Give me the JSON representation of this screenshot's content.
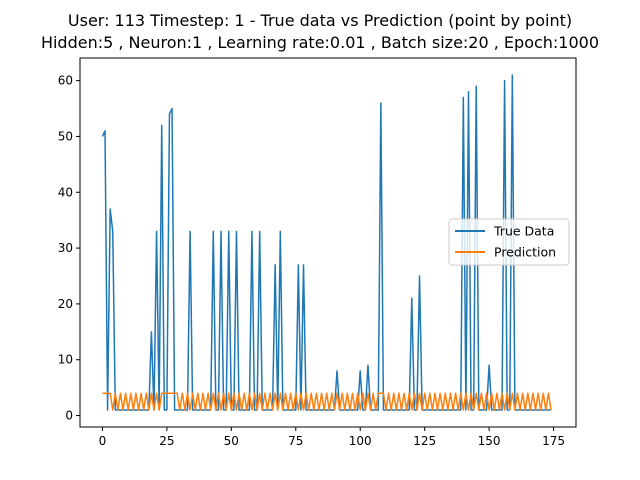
{
  "chart_data": {
    "type": "line",
    "title": "User: 113 Timestep: 1 - True data vs Prediction (point by point)",
    "subtitle": "Hidden:5 , Neuron:1 , Learning rate:0.01 , Batch size:20 , Epoch:1000",
    "xlabel": "",
    "ylabel": "",
    "xlim": [
      -8.7,
      183.7
    ],
    "ylim": [
      -2.05,
      64.05
    ],
    "xticks": [
      0,
      25,
      50,
      75,
      100,
      125,
      150,
      175
    ],
    "yticks": [
      0,
      10,
      20,
      30,
      40,
      50,
      60
    ],
    "grid": false,
    "legend_position": "center-right",
    "series": [
      {
        "name": "True Data",
        "color": "#1f77b4",
        "x": [
          0,
          1,
          2,
          3,
          4,
          5,
          6,
          7,
          8,
          9,
          10,
          11,
          12,
          13,
          14,
          15,
          16,
          17,
          18,
          19,
          20,
          21,
          22,
          23,
          24,
          25,
          26,
          27,
          28,
          29,
          30,
          31,
          32,
          33,
          34,
          35,
          36,
          37,
          38,
          39,
          40,
          41,
          42,
          43,
          44,
          45,
          46,
          47,
          48,
          49,
          50,
          51,
          52,
          53,
          54,
          55,
          56,
          57,
          58,
          59,
          60,
          61,
          62,
          63,
          64,
          65,
          66,
          67,
          68,
          69,
          70,
          71,
          72,
          73,
          74,
          75,
          76,
          77,
          78,
          79,
          80,
          81,
          82,
          83,
          84,
          85,
          86,
          87,
          88,
          89,
          90,
          91,
          92,
          93,
          94,
          95,
          96,
          97,
          98,
          99,
          100,
          101,
          102,
          103,
          104,
          105,
          106,
          107,
          108,
          109,
          110,
          111,
          112,
          113,
          114,
          115,
          116,
          117,
          118,
          119,
          120,
          121,
          122,
          123,
          124,
          125,
          126,
          127,
          128,
          129,
          130,
          131,
          132,
          133,
          134,
          135,
          136,
          137,
          138,
          139,
          140,
          141,
          142,
          143,
          144,
          145,
          146,
          147,
          148,
          149,
          150,
          151,
          152,
          153,
          154,
          155,
          156,
          157,
          158,
          159,
          160,
          161,
          162,
          163,
          164,
          165,
          166,
          167,
          168,
          169,
          170,
          171,
          172,
          173,
          174
        ],
        "y": [
          50,
          51,
          1,
          37,
          33,
          1,
          1,
          1,
          1,
          1,
          1,
          1,
          1,
          1,
          1,
          1,
          1,
          1,
          1,
          15,
          1,
          33,
          1,
          52,
          1,
          1,
          54,
          55,
          1,
          1,
          1,
          1,
          1,
          1,
          33,
          1,
          1,
          1,
          1,
          1,
          1,
          1,
          1,
          33,
          1,
          1,
          33,
          1,
          1,
          33,
          1,
          1,
          33,
          1,
          1,
          1,
          1,
          1,
          33,
          1,
          1,
          33,
          1,
          1,
          1,
          1,
          1,
          27,
          1,
          33,
          1,
          1,
          1,
          1,
          1,
          1,
          27,
          1,
          27,
          1,
          1,
          1,
          1,
          1,
          1,
          1,
          1,
          1,
          1,
          1,
          1,
          8,
          1,
          1,
          1,
          1,
          1,
          1,
          1,
          1,
          8,
          1,
          1,
          9,
          1,
          1,
          1,
          1,
          56,
          1,
          1,
          1,
          1,
          1,
          1,
          1,
          1,
          1,
          1,
          1,
          21,
          1,
          1,
          25,
          1,
          1,
          1,
          1,
          1,
          1,
          1,
          1,
          1,
          1,
          1,
          1,
          1,
          1,
          1,
          1,
          57,
          1,
          58,
          1,
          1,
          59,
          1,
          1,
          1,
          1,
          9,
          1,
          1,
          1,
          1,
          1,
          60,
          1,
          1,
          61,
          1,
          1,
          1,
          1,
          1,
          1,
          1,
          1,
          1,
          1,
          1,
          1,
          1,
          1,
          1
        ]
      },
      {
        "name": "Prediction",
        "color": "#ff7f0e",
        "x": [
          0,
          1,
          2,
          3,
          4,
          5,
          6,
          7,
          8,
          9,
          10,
          11,
          12,
          13,
          14,
          15,
          16,
          17,
          18,
          19,
          20,
          21,
          22,
          23,
          24,
          25,
          26,
          27,
          28,
          29,
          30,
          31,
          32,
          33,
          34,
          35,
          36,
          37,
          38,
          39,
          40,
          41,
          42,
          43,
          44,
          45,
          46,
          47,
          48,
          49,
          50,
          51,
          52,
          53,
          54,
          55,
          56,
          57,
          58,
          59,
          60,
          61,
          62,
          63,
          64,
          65,
          66,
          67,
          68,
          69,
          70,
          71,
          72,
          73,
          74,
          75,
          76,
          77,
          78,
          79,
          80,
          81,
          82,
          83,
          84,
          85,
          86,
          87,
          88,
          89,
          90,
          91,
          92,
          93,
          94,
          95,
          96,
          97,
          98,
          99,
          100,
          101,
          102,
          103,
          104,
          105,
          106,
          107,
          108,
          109,
          110,
          111,
          112,
          113,
          114,
          115,
          116,
          117,
          118,
          119,
          120,
          121,
          122,
          123,
          124,
          125,
          126,
          127,
          128,
          129,
          130,
          131,
          132,
          133,
          134,
          135,
          136,
          137,
          138,
          139,
          140,
          141,
          142,
          143,
          144,
          145,
          146,
          147,
          148,
          149,
          150,
          151,
          152,
          153,
          154,
          155,
          156,
          157,
          158,
          159,
          160,
          161,
          162,
          163,
          164,
          165,
          166,
          167,
          168,
          169,
          170,
          171,
          172,
          173,
          174
        ],
        "y": [
          4,
          4,
          4,
          4,
          1,
          4,
          1,
          4,
          1,
          4,
          1,
          4,
          1,
          4,
          1,
          4,
          1,
          4,
          1,
          4,
          1,
          4,
          1,
          4,
          4,
          4,
          4,
          4,
          4,
          4,
          1,
          4,
          1,
          4,
          1,
          4,
          1,
          4,
          1,
          4,
          1,
          4,
          1,
          4,
          1,
          4,
          1,
          4,
          1,
          4,
          1,
          4,
          1,
          4,
          1,
          4,
          1,
          4,
          1,
          4,
          1,
          4,
          1,
          4,
          1,
          4,
          1,
          4,
          1,
          4,
          1,
          4,
          1,
          4,
          1,
          4,
          1,
          4,
          1,
          4,
          1,
          4,
          1,
          4,
          1,
          4,
          1,
          4,
          1,
          4,
          1,
          4,
          1,
          4,
          1,
          4,
          1,
          4,
          1,
          4,
          1,
          4,
          1,
          4,
          1,
          4,
          1,
          4,
          4,
          4,
          1,
          4,
          1,
          4,
          1,
          4,
          1,
          4,
          1,
          4,
          1,
          4,
          1,
          4,
          1,
          4,
          1,
          4,
          1,
          4,
          1,
          4,
          1,
          4,
          1,
          4,
          1,
          4,
          1,
          4,
          1,
          4,
          1,
          4,
          1,
          4,
          1,
          4,
          1,
          4,
          1,
          4,
          1,
          4,
          1,
          4,
          1,
          4,
          1,
          4,
          1,
          4,
          1,
          4,
          1,
          4,
          1,
          4,
          1,
          4,
          1,
          4,
          1,
          4,
          1
        ]
      }
    ]
  }
}
